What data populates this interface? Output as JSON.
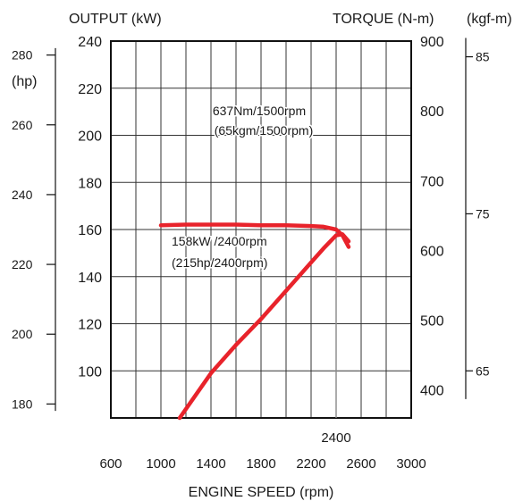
{
  "chart_data": {
    "type": "line",
    "title": "",
    "xlabel": "ENGINE SPEED (rpm)",
    "x_ticks": [
      "600",
      "1000",
      "1400",
      "1800",
      "2200",
      "2600",
      "3000"
    ],
    "x_range": [
      600,
      3000
    ],
    "grid": true,
    "axes": {
      "output_kw": {
        "label": "OUTPUT (kW)",
        "range": [
          80,
          240
        ],
        "ticks": [
          "240",
          "220",
          "200",
          "180",
          "160",
          "140",
          "120",
          "100"
        ]
      },
      "torque_nm": {
        "label": "TORQUE (N-m)",
        "range": [
          360,
          900
        ],
        "ticks": [
          "900",
          "800",
          "700",
          "600",
          "500",
          "400"
        ]
      },
      "torque_kgfm": {
        "label": "(kgf-m)",
        "range": [
          62,
          86
        ],
        "ticks": [
          "85",
          "75",
          "65"
        ]
      },
      "output_hp": {
        "label": "(hp)",
        "range": [
          176,
          284
        ],
        "ticks": [
          "280",
          "260",
          "240",
          "220",
          "200",
          "180"
        ]
      }
    },
    "series": [
      {
        "axis": "torque_nm",
        "color": "#e8232b",
        "x": [
          1000,
          1200,
          1400,
          1600,
          1800,
          2000,
          2200,
          2300,
          2400,
          2450,
          2500
        ],
        "y": [
          636,
          637,
          637,
          637,
          636,
          636,
          635,
          634,
          630,
          622,
          605
        ]
      },
      {
        "axis": "output_kw",
        "color": "#e8232b",
        "x": [
          1150,
          1400,
          1600,
          1800,
          2000,
          2200,
          2300,
          2400,
          2450,
          2500
        ],
        "y": [
          80,
          99,
          111,
          122,
          134,
          146,
          152,
          157.5,
          158,
          155
        ]
      }
    ],
    "annotations": [
      {
        "text": "637Nm/1500rpm"
      },
      {
        "text": "(65kgm/1500rpm)"
      },
      {
        "text": "158kW /2400rpm"
      },
      {
        "text": "(215hp/2400rpm)"
      },
      {
        "text": "2400"
      }
    ]
  }
}
